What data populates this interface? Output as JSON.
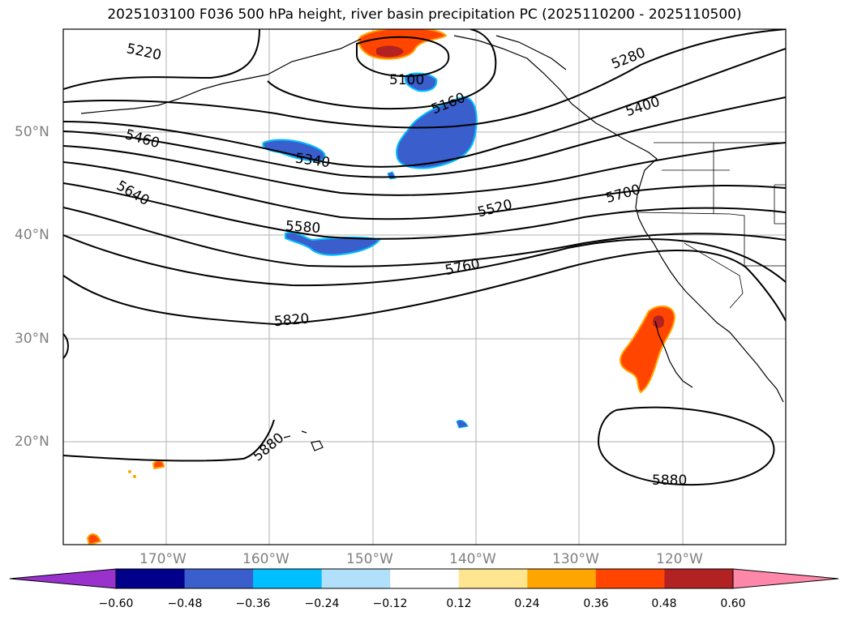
{
  "title": "2025103100 F036 500 hPa height, river basin precipitation PC (2025110200 - 2025110500)",
  "lat_labels": [
    "50°N",
    "40°N",
    "30°N",
    "20°N"
  ],
  "lon_labels": [
    "170°W",
    "160°W",
    "150°W",
    "140°W",
    "130°W",
    "120°W"
  ],
  "contour_labels": [
    "5220",
    "5280",
    "5100",
    "5160",
    "5400",
    "5460",
    "5340",
    "5640",
    "5520",
    "5700",
    "5580",
    "5760",
    "5820",
    "5880",
    "5880"
  ],
  "colorbar": {
    "ticks": [
      "−0.60",
      "−0.48",
      "−0.36",
      "−0.24",
      "−0.12",
      "0.12",
      "0.24",
      "0.36",
      "0.48",
      "0.60"
    ],
    "colors": [
      "#9932cc",
      "#00008b",
      "#3a5fcd",
      "#00bfff",
      "#b0e0fa",
      "#ffffff",
      "#ffe58f",
      "#ffa500",
      "#ff4500",
      "#b22222",
      "#ff88aa"
    ]
  }
}
